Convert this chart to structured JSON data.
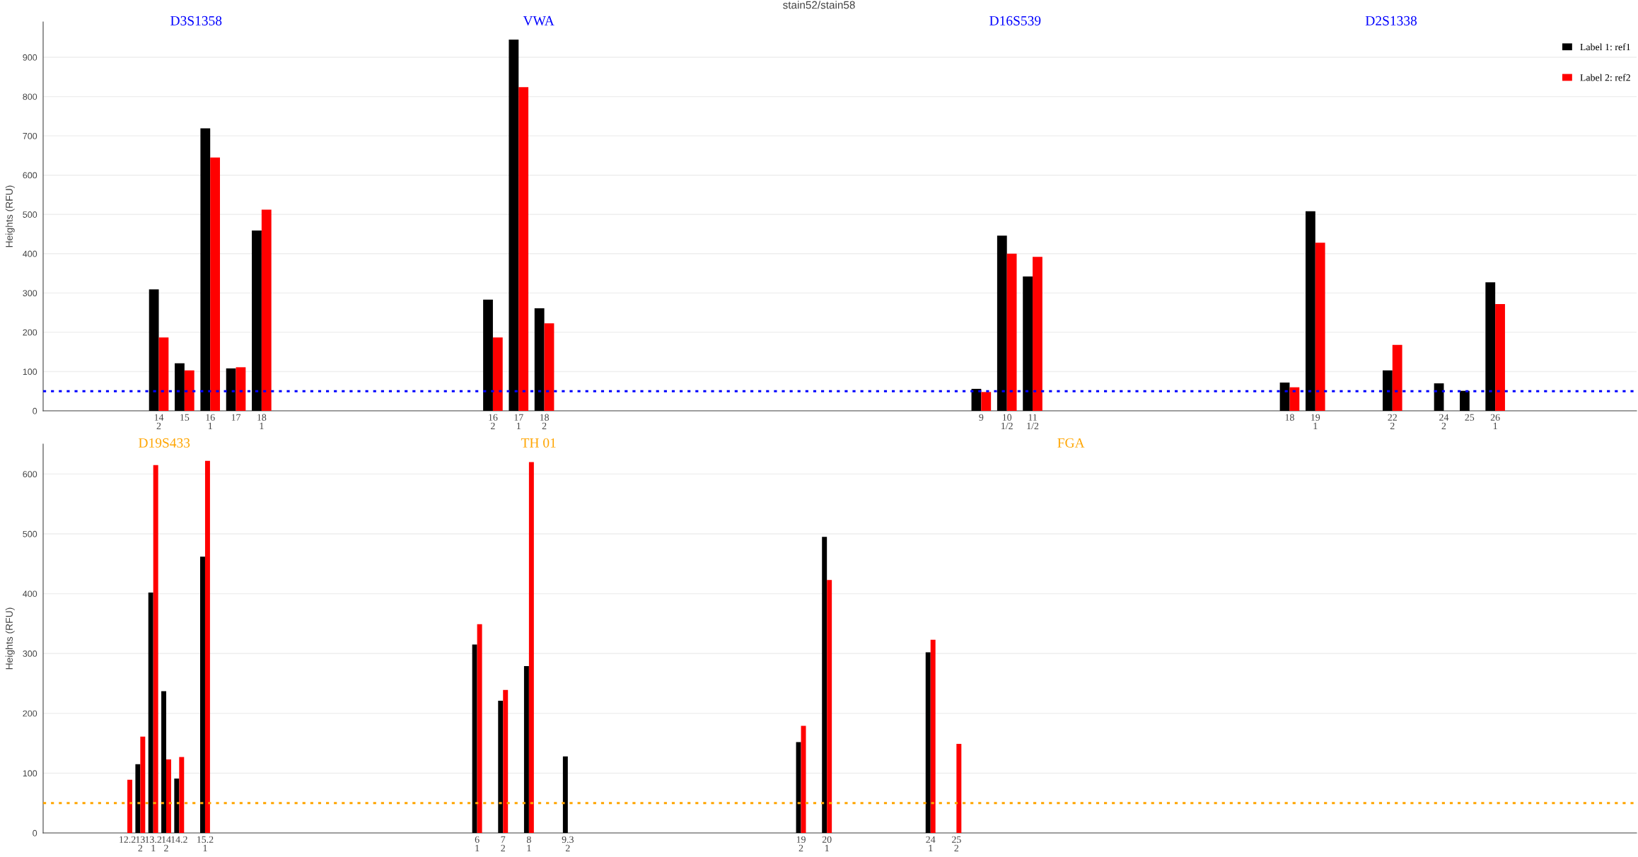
{
  "chart_data": [
    {
      "type": "bar",
      "title": "stain52/stain58",
      "ylabel": "Heights (RFU)",
      "categories": [
        null,
        null,
        null,
        null,
        "14\n2",
        "15",
        "16\n1",
        "17",
        "18\n1",
        null,
        null,
        null,
        null,
        null,
        null,
        null,
        null,
        "16\n2",
        "17\n1",
        "18\n2",
        null,
        null,
        null,
        null,
        null,
        null,
        null,
        null,
        null,
        null,
        null,
        null,
        null,
        null,
        null,
        null,
        "9",
        "10\n1/2",
        "11\n1/2",
        null,
        null,
        null,
        null,
        null,
        null,
        null,
        null,
        null,
        "18",
        "19\n1",
        null,
        null,
        "22\n2",
        null,
        "24\n2",
        "25",
        "26\n1",
        null,
        null,
        null,
        null,
        null
      ],
      "series": [
        {
          "name": "Label 1: ref1",
          "color": "#000000",
          "values": [
            null,
            null,
            null,
            null,
            309,
            121,
            719,
            108,
            459,
            null,
            null,
            null,
            null,
            null,
            null,
            null,
            null,
            283,
            945,
            261,
            null,
            null,
            null,
            null,
            null,
            null,
            null,
            null,
            null,
            null,
            null,
            null,
            null,
            null,
            null,
            null,
            56,
            446,
            342,
            null,
            null,
            null,
            null,
            null,
            null,
            null,
            null,
            null,
            72,
            508,
            null,
            null,
            103,
            null,
            70,
            51,
            327,
            null,
            null,
            null,
            null,
            null
          ]
        },
        {
          "name": "Label 2: ref2",
          "color": "#ff0000",
          "values": [
            null,
            null,
            null,
            null,
            187,
            103,
            645,
            111,
            512,
            null,
            null,
            null,
            null,
            null,
            null,
            null,
            null,
            187,
            824,
            223,
            null,
            null,
            null,
            null,
            null,
            null,
            null,
            null,
            null,
            null,
            null,
            null,
            null,
            null,
            null,
            null,
            48,
            400,
            392,
            null,
            null,
            null,
            null,
            null,
            null,
            null,
            null,
            null,
            60,
            428,
            null,
            null,
            168,
            null,
            null,
            null,
            272,
            null,
            null,
            null,
            null,
            null
          ]
        }
      ],
      "ylim": [
        0,
        990
      ],
      "yticks": [
        0,
        100,
        200,
        300,
        400,
        500,
        600,
        700,
        800,
        900
      ],
      "grid": "y",
      "legend": "top right",
      "ref_lines": [
        {
          "axis": "y",
          "value": 50,
          "color": "#0000ff",
          "line_style": "dotted"
        }
      ],
      "annotations": [
        "D3S1358",
        "VWA",
        "D16S539",
        "D2S1338"
      ]
    },
    {
      "type": "bar",
      "ylabel": "Heights (RFU)",
      "categories": [
        null,
        null,
        null,
        null,
        null,
        null,
        "12.2",
        "13\n2",
        "13.2\n1",
        "14\n2",
        "14.2",
        null,
        "15.2\n1",
        null,
        null,
        null,
        null,
        null,
        null,
        null,
        null,
        null,
        null,
        null,
        null,
        null,
        null,
        null,
        null,
        null,
        null,
        null,
        null,
        "6\n1",
        null,
        "7\n2",
        null,
        "8\n1",
        null,
        null,
        "9.3\n2",
        null,
        null,
        null,
        null,
        null,
        null,
        null,
        null,
        null,
        null,
        null,
        null,
        null,
        null,
        null,
        null,
        null,
        "19\n2",
        null,
        "20\n1",
        null,
        null,
        null,
        null,
        null,
        null,
        null,
        "24\n1",
        null,
        "25\n2",
        null,
        null,
        null,
        null,
        null,
        null,
        null,
        null,
        null,
        null,
        null,
        null,
        null,
        null,
        null,
        null,
        null,
        null,
        null,
        null,
        null,
        null,
        null,
        null,
        null,
        null,
        null,
        null,
        null,
        null,
        null,
        null,
        null,
        null,
        null,
        null,
        null,
        null,
        null,
        null,
        null,
        null,
        null,
        null,
        null,
        null,
        null,
        null,
        null,
        null,
        null,
        null
      ],
      "series": [
        {
          "color": "#000000",
          "values": [
            null,
            null,
            null,
            null,
            null,
            null,
            null,
            115,
            402,
            237,
            91,
            null,
            462,
            null,
            null,
            null,
            null,
            null,
            null,
            null,
            null,
            null,
            null,
            null,
            null,
            null,
            null,
            null,
            null,
            null,
            null,
            null,
            null,
            315,
            null,
            221,
            null,
            279,
            null,
            null,
            128,
            null,
            null,
            null,
            null,
            null,
            null,
            null,
            null,
            null,
            null,
            null,
            null,
            null,
            null,
            null,
            null,
            null,
            152,
            null,
            495,
            null,
            null,
            null,
            null,
            null,
            null,
            null,
            302,
            null,
            null,
            null,
            null,
            null,
            null,
            null,
            null,
            null,
            null,
            null,
            null,
            null,
            null,
            null,
            null,
            null,
            null,
            null,
            null,
            null,
            null,
            null,
            null,
            null,
            null,
            null,
            null,
            null,
            null,
            null,
            null,
            null,
            null,
            null,
            null,
            null,
            null,
            null,
            null,
            null,
            null,
            null,
            null,
            null,
            null,
            null,
            null,
            null,
            null,
            null,
            null,
            null,
            null
          ]
        },
        {
          "color": "#ff0000",
          "values": [
            null,
            null,
            null,
            null,
            null,
            null,
            89,
            161,
            615,
            123,
            127,
            null,
            622,
            null,
            null,
            null,
            null,
            null,
            null,
            null,
            null,
            null,
            null,
            null,
            null,
            null,
            null,
            null,
            null,
            null,
            null,
            null,
            null,
            349,
            null,
            239,
            null,
            620,
            null,
            null,
            null,
            null,
            null,
            null,
            null,
            null,
            null,
            null,
            null,
            null,
            null,
            null,
            null,
            null,
            null,
            null,
            null,
            null,
            179,
            null,
            423,
            null,
            null,
            null,
            null,
            null,
            null,
            null,
            323,
            null,
            149,
            null,
            null,
            null,
            null,
            null,
            null,
            null,
            null,
            null,
            null,
            null,
            null,
            null,
            null,
            null,
            null,
            null,
            null,
            null,
            null,
            null,
            null,
            null,
            null,
            null,
            null,
            null,
            null,
            null,
            null,
            null,
            null,
            null,
            null,
            null,
            null,
            null,
            null,
            null,
            null,
            null,
            null,
            null,
            null,
            null,
            null,
            null,
            null,
            null,
            null,
            null,
            null
          ]
        }
      ],
      "ylim": [
        0,
        650
      ],
      "yticks": [
        0,
        100,
        200,
        300,
        400,
        500,
        600
      ],
      "grid": "y",
      "ref_lines": [
        {
          "axis": "y",
          "value": 50,
          "color": "#ffa500",
          "line_style": "dotted"
        }
      ],
      "annotations": [
        "D19S433",
        "TH 01",
        "FGA"
      ]
    }
  ]
}
